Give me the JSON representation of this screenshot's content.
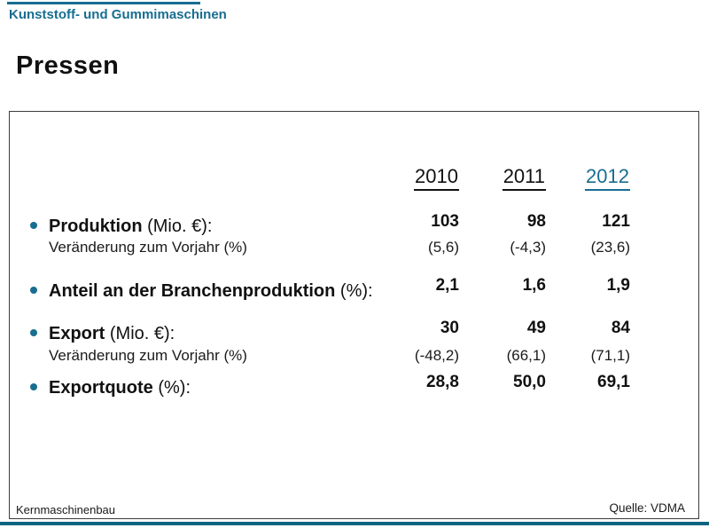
{
  "slide": {
    "category": "Kunststoff- und Gummimaschinen",
    "title": "Pressen",
    "footer_left": "Kernmaschinenbau",
    "footer_right": "Quelle: VDMA"
  },
  "colors": {
    "accent": "#176E90",
    "accent_band": "#0D6480"
  },
  "chart_data": {
    "type": "table",
    "title": "Pressen",
    "columns": [
      "2010",
      "2011",
      "2012"
    ],
    "highlight_column": "2012",
    "rows": [
      {
        "label_bold": "Produktion",
        "label_unit": " (Mio. €):",
        "values": [
          "103",
          "98",
          "121"
        ],
        "sub_label": "Veränderung zum Vorjahr (%)",
        "sub_values": [
          "(5,6)",
          "(-4,3)",
          "(23,6)"
        ]
      },
      {
        "label_bold": "Anteil an der Branchenproduktion",
        "label_unit": " (%):",
        "values": [
          "2,1",
          "1,6",
          "1,9"
        ]
      },
      {
        "label_bold": "Export",
        "label_unit": " (Mio. €):",
        "values": [
          "30",
          "49",
          "84"
        ],
        "sub_label": "Veränderung zum Vorjahr (%)",
        "sub_values": [
          "(-48,2)",
          "(66,1)",
          "(71,1)"
        ]
      },
      {
        "label_bold": "Exportquote",
        "label_unit": " (%):",
        "values": [
          "28,8",
          "50,0",
          "69,1"
        ]
      }
    ]
  }
}
